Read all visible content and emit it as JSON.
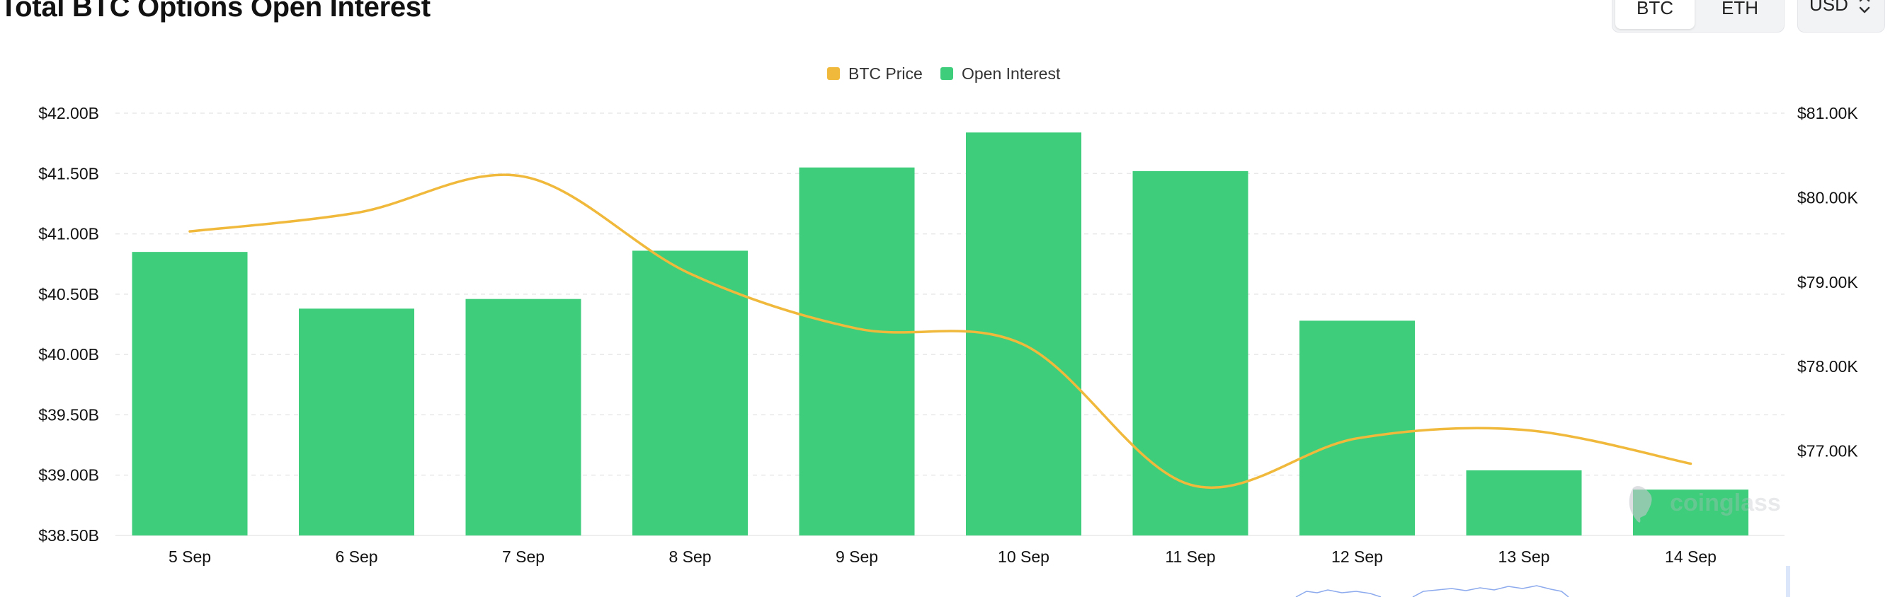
{
  "page": {
    "title": "Total BTC Options Open Interest"
  },
  "asset_toggle": {
    "options": [
      "BTC",
      "ETH"
    ],
    "selected": "BTC"
  },
  "currency_select": {
    "value": "USD",
    "icon": "chevron-up-down-icon"
  },
  "watermark": {
    "text": "coinglass",
    "icon": "coinglass-logo-icon"
  },
  "colors": {
    "open_interest": "#3ecd7b",
    "btc_price": "#f0b93c",
    "grid": "#e8e8e8"
  },
  "chart_data": {
    "type": "bar",
    "title": "Total BTC Options Open Interest",
    "categories": [
      "5 Sep",
      "6 Sep",
      "7 Sep",
      "8 Sep",
      "9 Sep",
      "10 Sep",
      "11 Sep",
      "12 Sep",
      "13 Sep",
      "14 Sep"
    ],
    "series": [
      {
        "name": "Open Interest",
        "type": "bar",
        "axis": "left",
        "unit": "B USD",
        "values": [
          40.85,
          40.38,
          40.46,
          40.86,
          41.55,
          41.84,
          41.52,
          40.28,
          39.04,
          38.88
        ]
      },
      {
        "name": "BTC Price",
        "type": "line",
        "axis": "right",
        "unit": "K USD",
        "smooth": true,
        "values": [
          79.6,
          79.82,
          80.25,
          79.1,
          78.45,
          78.26,
          76.6,
          77.15,
          77.25,
          76.85
        ]
      }
    ],
    "y_left": {
      "ticks": [
        "$42.00B",
        "$41.50B",
        "$41.00B",
        "$40.50B",
        "$40.00B",
        "$39.50B",
        "$39.00B",
        "$38.50B"
      ],
      "range": [
        38.5,
        42.0
      ]
    },
    "y_right": {
      "ticks": [
        "$81.00K",
        "$80.00K",
        "$79.00K",
        "$78.00K",
        "$77.00K"
      ],
      "range": [
        76.0,
        81.0
      ]
    },
    "legend": [
      "BTC Price",
      "Open Interest"
    ],
    "legend_position": "top-center",
    "grid": true
  }
}
